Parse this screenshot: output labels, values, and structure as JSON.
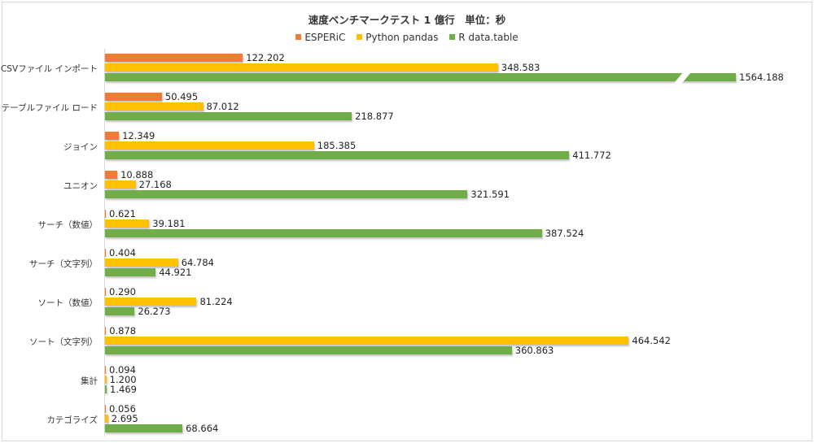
{
  "chart_data": {
    "type": "bar",
    "orientation": "horizontal",
    "title": "速度ベンチマークテスト 1 億行　単位：秒",
    "xlabel": "",
    "ylabel": "",
    "legend_position": "top",
    "grid": false,
    "axis_break": {
      "series": "R data.table",
      "category": "CSVファイル インポート"
    },
    "categories": [
      "CSVファイル インポート",
      "テーブルファイル ロード",
      "ジョイン",
      "ユニオン",
      "サーチ（数値）",
      "サーチ（文字列）",
      "ソート（数値）",
      "ソート（文字列）",
      "集計",
      "カテゴライズ"
    ],
    "series": [
      {
        "name": "ESPERiC",
        "color": "#ed7d31",
        "values": [
          122.202,
          50.495,
          12.349,
          10.888,
          0.621,
          0.404,
          0.29,
          0.878,
          0.094,
          0.056
        ]
      },
      {
        "name": "Python pandas",
        "color": "#ffc000",
        "values": [
          348.583,
          87.012,
          185.385,
          27.168,
          39.181,
          64.784,
          81.224,
          464.542,
          1.2,
          2.695
        ]
      },
      {
        "name": "R data.table",
        "color": "#70ad47",
        "values": [
          1564.188,
          218.877,
          411.772,
          321.591,
          387.524,
          44.921,
          26.273,
          360.863,
          1.469,
          68.664
        ]
      }
    ],
    "labels": [
      [
        "122.202",
        "348.583",
        "1564.188"
      ],
      [
        "50.495",
        "87.012",
        "218.877"
      ],
      [
        "12.349",
        "185.385",
        "411.772"
      ],
      [
        "10.888",
        "27.168",
        "321.591"
      ],
      [
        "0.621",
        "39.181",
        "387.524"
      ],
      [
        "0.404",
        "64.784",
        "44.921"
      ],
      [
        "0.290",
        "81.224",
        "26.273"
      ],
      [
        "0.878",
        "464.542",
        "360.863"
      ],
      [
        "0.094",
        "1.200",
        "1.469"
      ],
      [
        "0.056",
        "2.695",
        "68.664"
      ]
    ]
  }
}
